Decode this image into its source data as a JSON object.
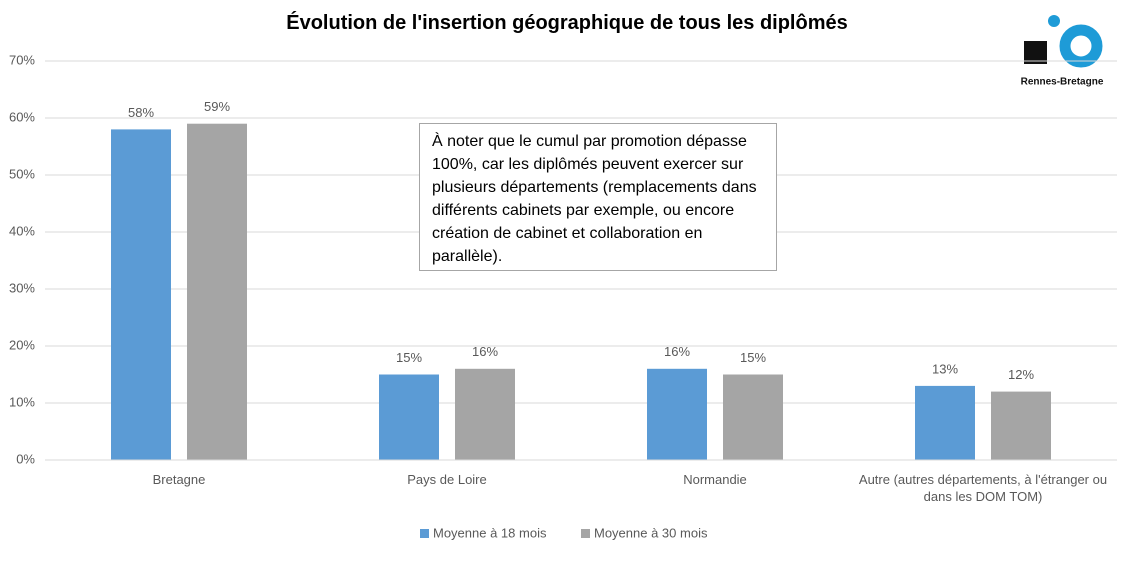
{
  "chart_data": {
    "type": "bar",
    "title": "Évolution de l'insertion géographique de tous les diplômés",
    "categories": [
      "Bretagne",
      "Pays de Loire",
      "Normandie",
      "Autre (autres départements, à l'étranger ou dans les DOM TOM)"
    ],
    "series": [
      {
        "name": "Moyenne à 18 mois",
        "color": "#5b9bd5",
        "values": [
          58,
          15,
          16,
          13
        ],
        "value_labels": [
          "58%",
          "15%",
          "16%",
          "13%"
        ]
      },
      {
        "name": "Moyenne à 30 mois",
        "color": "#a5a5a5",
        "values": [
          59,
          16,
          15,
          12
        ],
        "value_labels": [
          "59%",
          "16%",
          "15%",
          "12%"
        ]
      }
    ],
    "ylim": [
      0,
      70
    ],
    "yticks": [
      {
        "value": 0,
        "label": "0%"
      },
      {
        "value": 10,
        "label": "10%"
      },
      {
        "value": 20,
        "label": "20%"
      },
      {
        "value": 30,
        "label": "30%"
      },
      {
        "value": 40,
        "label": "40%"
      },
      {
        "value": 50,
        "label": "50%"
      },
      {
        "value": 60,
        "label": "60%"
      },
      {
        "value": 70,
        "label": "70%"
      }
    ],
    "grid": true,
    "legend": "bottom",
    "annotation": "À noter que le cumul par promotion dépasse 100%, car les diplômés peuvent exercer sur plusieurs départements (remplacements dans différents cabinets par exemple, ou encore création de cabinet et collaboration en parallèle)."
  },
  "logo": {
    "text": "Rennes-Bretagne"
  }
}
